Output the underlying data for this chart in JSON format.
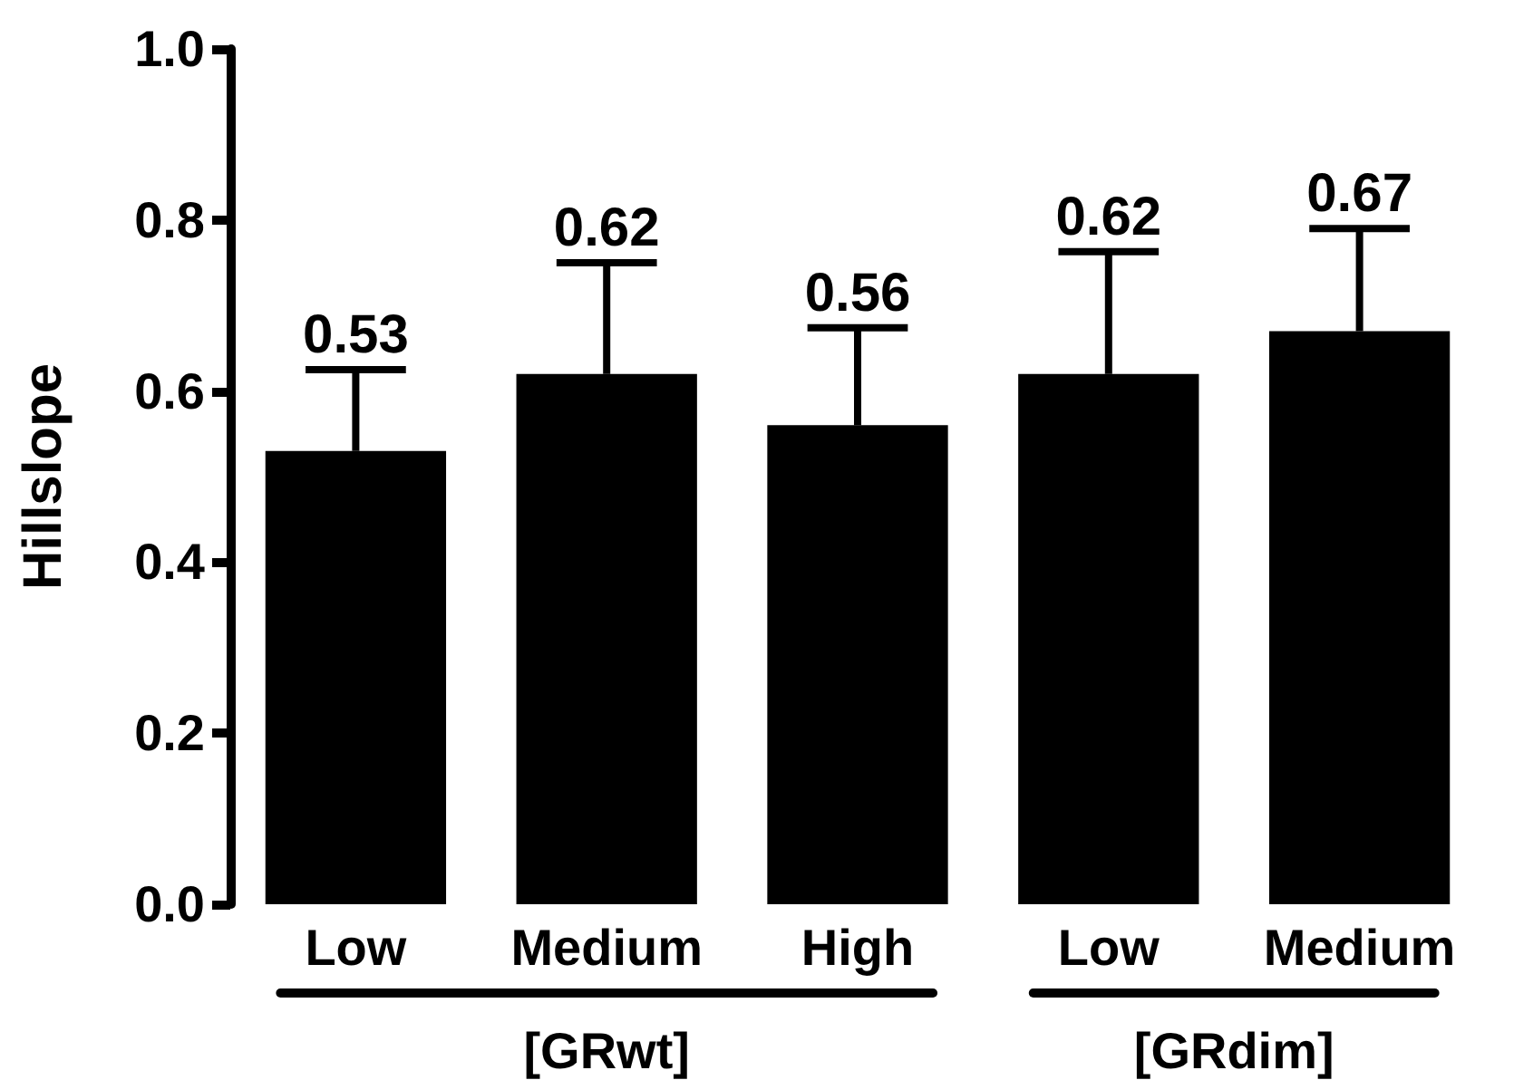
{
  "chart_data": {
    "type": "bar",
    "ylabel": "Hillslope",
    "categories": [
      "Low",
      "Medium",
      "High",
      "Low",
      "Medium"
    ],
    "values": [
      0.53,
      0.62,
      0.56,
      0.62,
      0.67
    ],
    "color": "#000000",
    "errors": [
      [
        0.53,
        0.625
      ],
      [
        0.62,
        0.75
      ],
      [
        0.56,
        0.674
      ],
      [
        0.62,
        0.763
      ],
      [
        0.67,
        0.79
      ]
    ],
    "data_labels": true,
    "ylim": [
      0,
      1
    ],
    "yticks": [
      {
        "value": 0,
        "label": "0.0"
      },
      {
        "value": 0.2,
        "label": "0.2"
      },
      {
        "value": 0.4,
        "label": "0.4"
      },
      {
        "value": 0.6,
        "label": "0.6"
      },
      {
        "value": 0.8,
        "label": "0.8"
      },
      {
        "value": 1,
        "label": "1.0"
      }
    ],
    "grid": false,
    "annotations": [
      "[GRwt]",
      "[GRdim]"
    ]
  }
}
